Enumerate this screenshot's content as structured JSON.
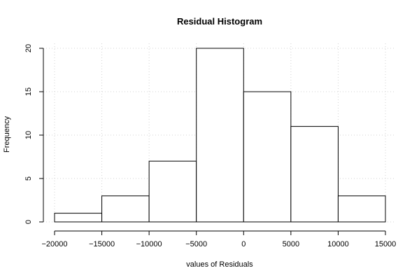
{
  "chart_data": {
    "type": "bar",
    "title": "Residual Histogram",
    "xlabel": "values of Residuals",
    "ylabel": "Frequency",
    "bins": [
      {
        "from": -20000,
        "to": -15000,
        "count": 1
      },
      {
        "from": -15000,
        "to": -10000,
        "count": 3
      },
      {
        "from": -10000,
        "to": -5000,
        "count": 7
      },
      {
        "from": -5000,
        "to": 0,
        "count": 20
      },
      {
        "from": 0,
        "to": 5000,
        "count": 15
      },
      {
        "from": 5000,
        "to": 10000,
        "count": 11
      },
      {
        "from": 10000,
        "to": 15000,
        "count": 3
      }
    ],
    "xlim": [
      -20000,
      15000
    ],
    "ylim": [
      0,
      20
    ],
    "x_ticks": [
      -20000,
      -15000,
      -10000,
      -5000,
      0,
      5000,
      10000,
      15000
    ],
    "x_tick_labels": [
      "−20000",
      "−15000",
      "−10000",
      "−5000",
      "0",
      "5000",
      "10000",
      "15000"
    ],
    "y_ticks": [
      0,
      5,
      10,
      15,
      20
    ],
    "y_tick_labels": [
      "0",
      "5",
      "10",
      "15",
      "20"
    ],
    "grid": true,
    "colors": {
      "bar_fill": "#ffffff",
      "bar_stroke": "#000000",
      "grid": "#d3d3d3"
    }
  }
}
